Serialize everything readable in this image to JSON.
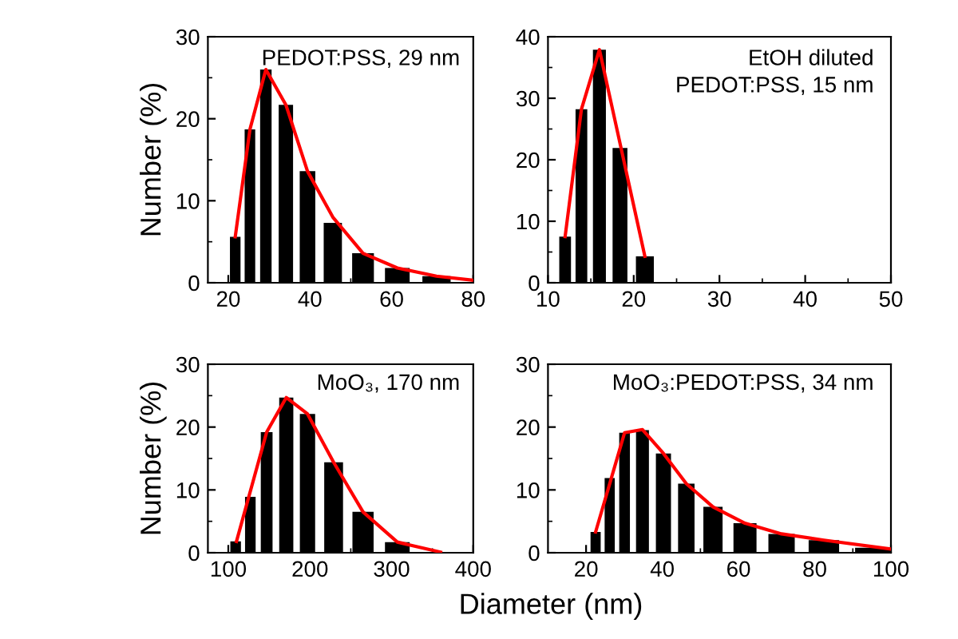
{
  "chart_data": [
    {
      "type": "bar",
      "ylabel": "Number (%)",
      "annotations": [
        "PEDOT:PSS, 29 nm"
      ],
      "xlim": [
        15,
        80
      ],
      "ylim": [
        0,
        30
      ],
      "xticks": [
        20,
        {
          "value": 30,
          "label": null
        },
        40,
        {
          "value": 50,
          "label": null
        },
        60,
        {
          "value": 70,
          "label": null
        },
        80
      ],
      "yticks": [
        0,
        {
          "value": 5,
          "label": null
        },
        10,
        {
          "value": 15,
          "label": null
        },
        20,
        {
          "value": 25,
          "label": null
        },
        30
      ],
      "grid": false,
      "legend": false,
      "series": [
        {
          "color": "#000000",
          "x": [
            21.7,
            25.3,
            29.2,
            34.1,
            39.4,
            45.6,
            53,
            61.4,
            71
          ],
          "values": [
            5.6,
            18.7,
            26,
            21.7,
            13.6,
            7.3,
            3.6,
            1.8,
            0.8
          ]
        },
        {
          "type": "line",
          "color": "#ff0000",
          "x": [
            21.7,
            25.3,
            29.2,
            34.1,
            39.4,
            45.6,
            53,
            61.4,
            71,
            80
          ],
          "values": [
            5.6,
            18.7,
            26,
            21.7,
            13.6,
            8,
            3.6,
            1.8,
            0.8,
            0.3
          ]
        }
      ]
    },
    {
      "type": "bar",
      "annotations": [
        "EtOH diluted\nPEDOT:PSS, 15 nm"
      ],
      "xlim": [
        10,
        50
      ],
      "ylim": [
        0,
        40
      ],
      "xticks": [
        10,
        {
          "value": 15,
          "label": null
        },
        20,
        {
          "value": 25,
          "label": null
        },
        30,
        {
          "value": 35,
          "label": null
        },
        40,
        {
          "value": 45,
          "label": null
        },
        50
      ],
      "yticks": [
        0,
        {
          "value": 5,
          "label": null
        },
        10,
        {
          "value": 15,
          "label": null
        },
        20,
        {
          "value": 25,
          "label": null
        },
        30,
        {
          "value": 35,
          "label": null
        },
        40
      ],
      "grid": false,
      "legend": false,
      "series": [
        {
          "color": "#000000",
          "x": [
            12.0,
            13.9,
            16.0,
            18.4,
            21.3
          ],
          "values": [
            7.5,
            28.2,
            37.9,
            21.9,
            4.3
          ]
        },
        {
          "type": "line",
          "color": "#ff0000",
          "x": [
            12.0,
            13.9,
            16.0,
            21.3
          ],
          "values": [
            7.5,
            28.2,
            37.9,
            4.3
          ]
        }
      ]
    },
    {
      "type": "bar",
      "ylabel": "Number (%)",
      "xlabel": "Diameter (nm)",
      "annotations": [
        "MoO₃, 170 nm"
      ],
      "xlim": [
        75,
        400
      ],
      "ylim": [
        0,
        30
      ],
      "xticks": [
        100,
        {
          "value": 150,
          "label": null
        },
        200,
        {
          "value": 250,
          "label": null
        },
        300,
        {
          "value": 350,
          "label": null
        },
        400
      ],
      "yticks": [
        0,
        {
          "value": 5,
          "label": null
        },
        10,
        {
          "value": 15,
          "label": null
        },
        20,
        {
          "value": 25,
          "label": null
        },
        30
      ],
      "grid": false,
      "legend": false,
      "series": [
        {
          "color": "#000000",
          "x": [
            109,
            127,
            147,
            171,
            197,
            229,
            265,
            307,
            355
          ],
          "values": [
            1.8,
            8.9,
            19.2,
            24.7,
            22.1,
            14.4,
            6.5,
            1.7,
            0.1
          ]
        },
        {
          "type": "line",
          "color": "#ff0000",
          "x": [
            110,
            147,
            171,
            197,
            229,
            265,
            307,
            360
          ],
          "values": [
            1.8,
            19.2,
            24.7,
            22.1,
            14.4,
            6.5,
            1.7,
            0.1
          ]
        }
      ]
    },
    {
      "type": "bar",
      "annotations": [
        "MoO₃:PEDOT:PSS, 34 nm"
      ],
      "xlim": [
        10,
        100
      ],
      "ylim": [
        0,
        30
      ],
      "xticks": [
        20,
        {
          "value": 30,
          "label": null
        },
        40,
        {
          "value": 50,
          "label": null
        },
        60,
        {
          "value": 70,
          "label": null
        },
        80,
        {
          "value": 90,
          "label": null
        },
        100
      ],
      "yticks": [
        0,
        {
          "value": 5,
          "label": null
        },
        10,
        {
          "value": 15,
          "label": null
        },
        20,
        {
          "value": 25,
          "label": null
        },
        30
      ],
      "grid": false,
      "legend": false,
      "series": [
        {
          "color": "#000000",
          "x": [
            22.5,
            26.2,
            30.1,
            34.8,
            40.3,
            46.3,
            53.3,
            61.7,
            71.3,
            82.4,
            95.2
          ],
          "values": [
            3.3,
            11.9,
            19.1,
            19.5,
            15.8,
            11.0,
            7.3,
            4.7,
            3.0,
            2.0,
            0.8
          ]
        },
        {
          "type": "line",
          "color": "#ff0000",
          "x": [
            22.5,
            30.1,
            34.8,
            40.3,
            46.3,
            53.3,
            61.7,
            71.3,
            82.4,
            100
          ],
          "values": [
            3.3,
            19.1,
            19.6,
            15.8,
            11.0,
            7.3,
            4.7,
            3.0,
            2.0,
            0.6
          ]
        }
      ]
    }
  ]
}
